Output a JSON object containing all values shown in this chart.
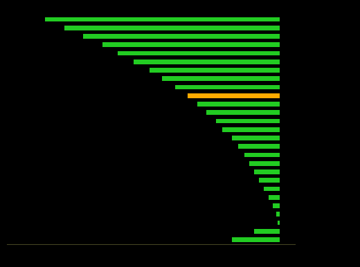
{
  "background_color": "#000000",
  "bar_green": "#22cc22",
  "bar_orange": "#ffaa00",
  "figsize": [
    5.2,
    3.86
  ],
  "dpi": 100,
  "spine_color": "#444422",
  "values_abs": [
    7.4,
    6.8,
    6.2,
    5.6,
    5.1,
    4.6,
    4.1,
    3.7,
    3.3,
    2.9,
    2.6,
    2.3,
    2.0,
    1.8,
    1.5,
    1.3,
    1.1,
    0.95,
    0.8,
    0.65,
    0.5,
    0.35,
    0.2,
    0.1,
    0.05,
    0.8,
    1.5
  ],
  "orange_index": 9,
  "bar_height": 0.55,
  "xlim_min": -8.6,
  "xlim_max": 0.5
}
